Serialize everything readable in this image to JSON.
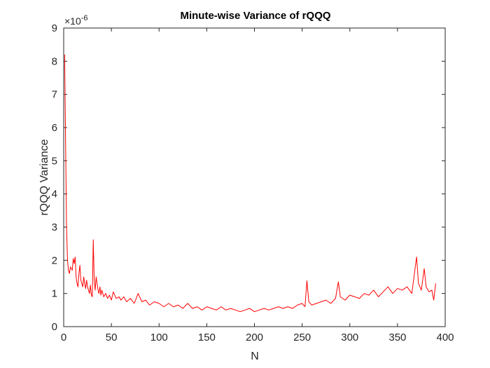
{
  "chart_data": {
    "type": "line",
    "title": "Minute-wise Variance of rQQQ",
    "xlabel": "N",
    "ylabel": "rQQQ Variance",
    "multiplier_base": "×10",
    "multiplier_exp": "-6",
    "xlim": [
      0,
      400
    ],
    "ylim": [
      0,
      9
    ],
    "xticks": [
      "0",
      "50",
      "100",
      "150",
      "200",
      "250",
      "300",
      "350",
      "400"
    ],
    "yticks": [
      "0",
      "1",
      "2",
      "3",
      "4",
      "5",
      "6",
      "7",
      "8",
      "9"
    ],
    "grid": false,
    "series": [
      {
        "color": "#ff0000",
        "x": [
          1,
          2,
          3,
          4,
          5,
          6,
          7,
          8,
          9,
          10,
          11,
          12,
          13,
          14,
          15,
          16,
          17,
          18,
          19,
          20,
          21,
          22,
          23,
          24,
          25,
          26,
          27,
          28,
          29,
          30,
          31,
          32,
          33,
          34,
          35,
          36,
          37,
          38,
          39,
          40,
          42,
          44,
          46,
          48,
          50,
          52,
          55,
          58,
          60,
          63,
          66,
          70,
          74,
          78,
          82,
          86,
          90,
          95,
          100,
          105,
          110,
          115,
          120,
          125,
          130,
          135,
          140,
          145,
          150,
          155,
          160,
          165,
          170,
          175,
          180,
          185,
          190,
          195,
          200,
          205,
          210,
          215,
          220,
          225,
          230,
          235,
          240,
          245,
          250,
          253,
          255,
          257,
          260,
          265,
          270,
          275,
          280,
          285,
          288,
          290,
          295,
          300,
          305,
          310,
          315,
          320,
          325,
          330,
          335,
          340,
          345,
          350,
          355,
          360,
          365,
          370,
          372,
          375,
          378,
          380,
          383,
          386,
          388,
          390
        ],
        "y": [
          8.2,
          5.5,
          3.0,
          2.0,
          1.7,
          1.6,
          1.8,
          1.75,
          1.7,
          2.05,
          1.9,
          2.1,
          1.5,
          1.3,
          1.2,
          1.6,
          1.85,
          1.4,
          1.3,
          1.2,
          1.5,
          1.3,
          1.15,
          1.4,
          1.2,
          1.1,
          1.0,
          1.25,
          0.95,
          0.9,
          2.62,
          1.4,
          1.1,
          1.5,
          1.3,
          1.1,
          1.0,
          1.2,
          0.95,
          1.1,
          0.9,
          1.0,
          0.85,
          0.95,
          0.8,
          1.05,
          0.85,
          0.9,
          0.8,
          0.9,
          0.75,
          0.85,
          0.7,
          1.0,
          0.75,
          0.8,
          0.65,
          0.75,
          0.7,
          0.6,
          0.7,
          0.6,
          0.65,
          0.55,
          0.7,
          0.55,
          0.6,
          0.5,
          0.6,
          0.55,
          0.5,
          0.6,
          0.5,
          0.55,
          0.5,
          0.45,
          0.5,
          0.55,
          0.45,
          0.5,
          0.55,
          0.5,
          0.55,
          0.6,
          0.55,
          0.6,
          0.55,
          0.65,
          0.7,
          0.6,
          1.38,
          0.75,
          0.65,
          0.7,
          0.75,
          0.8,
          0.7,
          0.85,
          1.35,
          0.9,
          0.8,
          0.95,
          0.9,
          0.85,
          1.0,
          0.95,
          1.1,
          0.9,
          1.05,
          1.2,
          1.0,
          1.15,
          1.1,
          1.2,
          1.0,
          2.1,
          1.3,
          1.1,
          1.75,
          1.2,
          1.05,
          1.1,
          0.8,
          1.3
        ]
      }
    ]
  }
}
